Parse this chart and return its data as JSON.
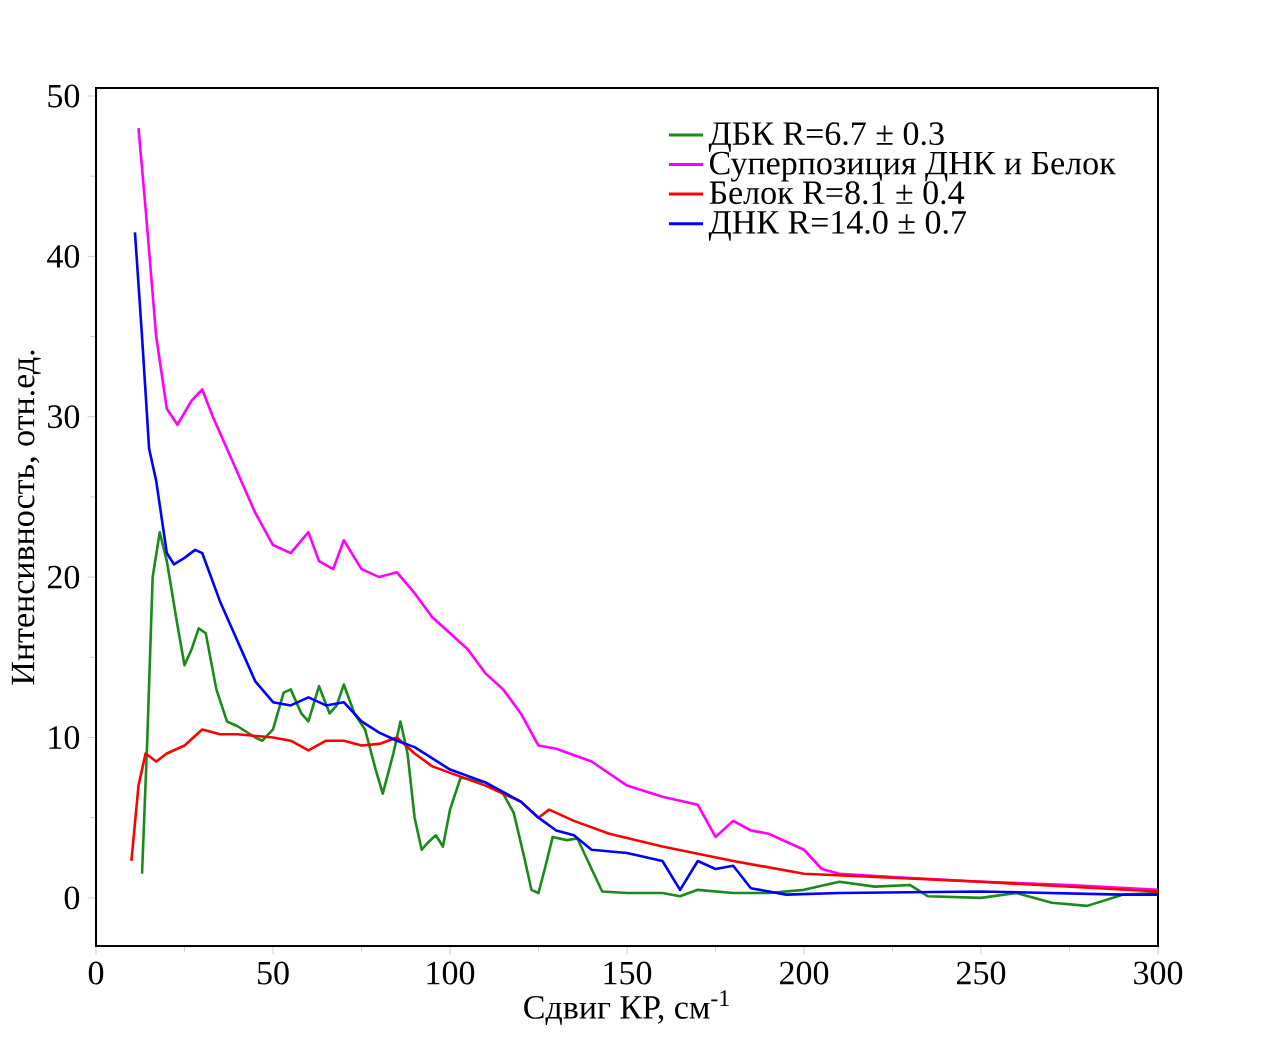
{
  "chart_data": {
    "type": "line",
    "xlabel": "Сдвиг КР, см$^{-1}$",
    "ylabel": "Интенсивность, отн.ед.",
    "xlim": [
      0,
      300
    ],
    "ylim": [
      -3,
      50.5
    ],
    "xticks": [
      0,
      50,
      100,
      150,
      200,
      250,
      300
    ],
    "yticks": [
      0,
      10,
      20,
      30,
      40,
      50
    ],
    "grid": false,
    "legend": "top right",
    "line_style": "solid",
    "marker": "none",
    "series": [
      {
        "name": "ДБК   R=6.7 ± 0.3",
        "color": "#1a8a1a",
        "x": [
          13,
          14.5,
          16,
          18,
          20,
          23,
          25,
          27,
          29,
          31,
          34,
          37,
          40,
          45,
          47,
          50,
          53,
          55,
          58,
          60,
          63,
          66,
          68,
          70,
          73,
          76,
          79,
          81,
          84,
          86,
          88,
          90,
          92,
          94,
          96,
          98,
          100,
          103,
          110,
          115,
          118,
          121,
          123,
          125,
          127,
          129,
          133,
          136,
          140,
          143,
          150,
          160,
          165,
          170,
          180,
          190,
          200,
          210,
          220,
          230,
          235,
          250,
          260,
          270,
          280,
          290,
          300
        ],
        "values": [
          1.5,
          10,
          20,
          22.8,
          21,
          17,
          14.5,
          15.5,
          16.8,
          16.5,
          13,
          11,
          10.7,
          10,
          9.8,
          10.5,
          12.8,
          13,
          11.5,
          11,
          13.2,
          11.5,
          12,
          13.3,
          11.5,
          10.5,
          8,
          6.5,
          9,
          11,
          9,
          5,
          3,
          3.5,
          3.9,
          3.2,
          5.5,
          7.5,
          7.2,
          6.5,
          5.3,
          2.5,
          0.5,
          0.3,
          2,
          3.8,
          3.6,
          3.7,
          1.8,
          0.4,
          0.3,
          0.3,
          0.1,
          0.5,
          0.3,
          0.3,
          0.5,
          1.0,
          0.7,
          0.8,
          0.1,
          0,
          0.3,
          -0.3,
          -0.5,
          0.2,
          0.3
        ]
      },
      {
        "name": "Суперпозиция ДНК и Белок",
        "color": "#ff00ff",
        "x": [
          12,
          14,
          17,
          20,
          23,
          27,
          30,
          33,
          38,
          45,
          50,
          55,
          60,
          63,
          67,
          70,
          75,
          80,
          85,
          90,
          95,
          100,
          105,
          110,
          115,
          120,
          125,
          130,
          140,
          150,
          160,
          170,
          175,
          180,
          185,
          190,
          195,
          200,
          205,
          210,
          225,
          250,
          275,
          300
        ],
        "values": [
          48,
          43,
          35,
          30.5,
          29.5,
          31,
          31.7,
          30,
          27.5,
          24,
          22,
          21.5,
          22.8,
          21,
          20.5,
          22.3,
          20.5,
          20,
          20.3,
          19,
          17.5,
          16.5,
          15.5,
          14,
          13,
          11.5,
          9.5,
          9.3,
          8.5,
          7,
          6.3,
          5.8,
          3.8,
          4.8,
          4.2,
          4,
          3.5,
          3,
          1.8,
          1.5,
          1.3,
          1.0,
          0.8,
          0.5
        ]
      },
      {
        "name": "Белок R=8.1 ± 0.4",
        "color": "#ff0000",
        "x": [
          10,
          12,
          14,
          17,
          20,
          25,
          30,
          35,
          40,
          50,
          55,
          60,
          65,
          70,
          75,
          80,
          85,
          90,
          95,
          100,
          110,
          120,
          125,
          128,
          135,
          145,
          160,
          180,
          200,
          250,
          300
        ],
        "values": [
          2.3,
          7,
          9,
          8.5,
          9,
          9.5,
          10.5,
          10.2,
          10.2,
          10,
          9.8,
          9.2,
          9.8,
          9.8,
          9.5,
          9.6,
          10.0,
          9,
          8.2,
          7.8,
          7,
          6,
          5,
          5.5,
          4.8,
          4,
          3.2,
          2.3,
          1.5,
          1.0,
          0.4
        ]
      },
      {
        "name": "ДНК    R=14.0 ± 0.7",
        "color": "#0000ff",
        "x": [
          11,
          13,
          15,
          17,
          20,
          22,
          25,
          28,
          30,
          35,
          40,
          45,
          50,
          55,
          60,
          65,
          70,
          75,
          80,
          85,
          90,
          100,
          110,
          120,
          125,
          130,
          135,
          140,
          150,
          160,
          165,
          170,
          175,
          180,
          185,
          195,
          210,
          250,
          290,
          300
        ],
        "values": [
          41.5,
          35,
          28,
          26,
          21.5,
          20.8,
          21.2,
          21.7,
          21.5,
          18.5,
          16,
          13.5,
          12.2,
          12,
          12.5,
          12,
          12.2,
          11,
          10.3,
          9.8,
          9.4,
          8,
          7.2,
          6,
          5,
          4.2,
          3.9,
          3,
          2.8,
          2.3,
          0.5,
          2.3,
          1.8,
          2,
          0.6,
          0.2,
          0.3,
          0.4,
          0.2,
          0.2
        ]
      }
    ]
  }
}
